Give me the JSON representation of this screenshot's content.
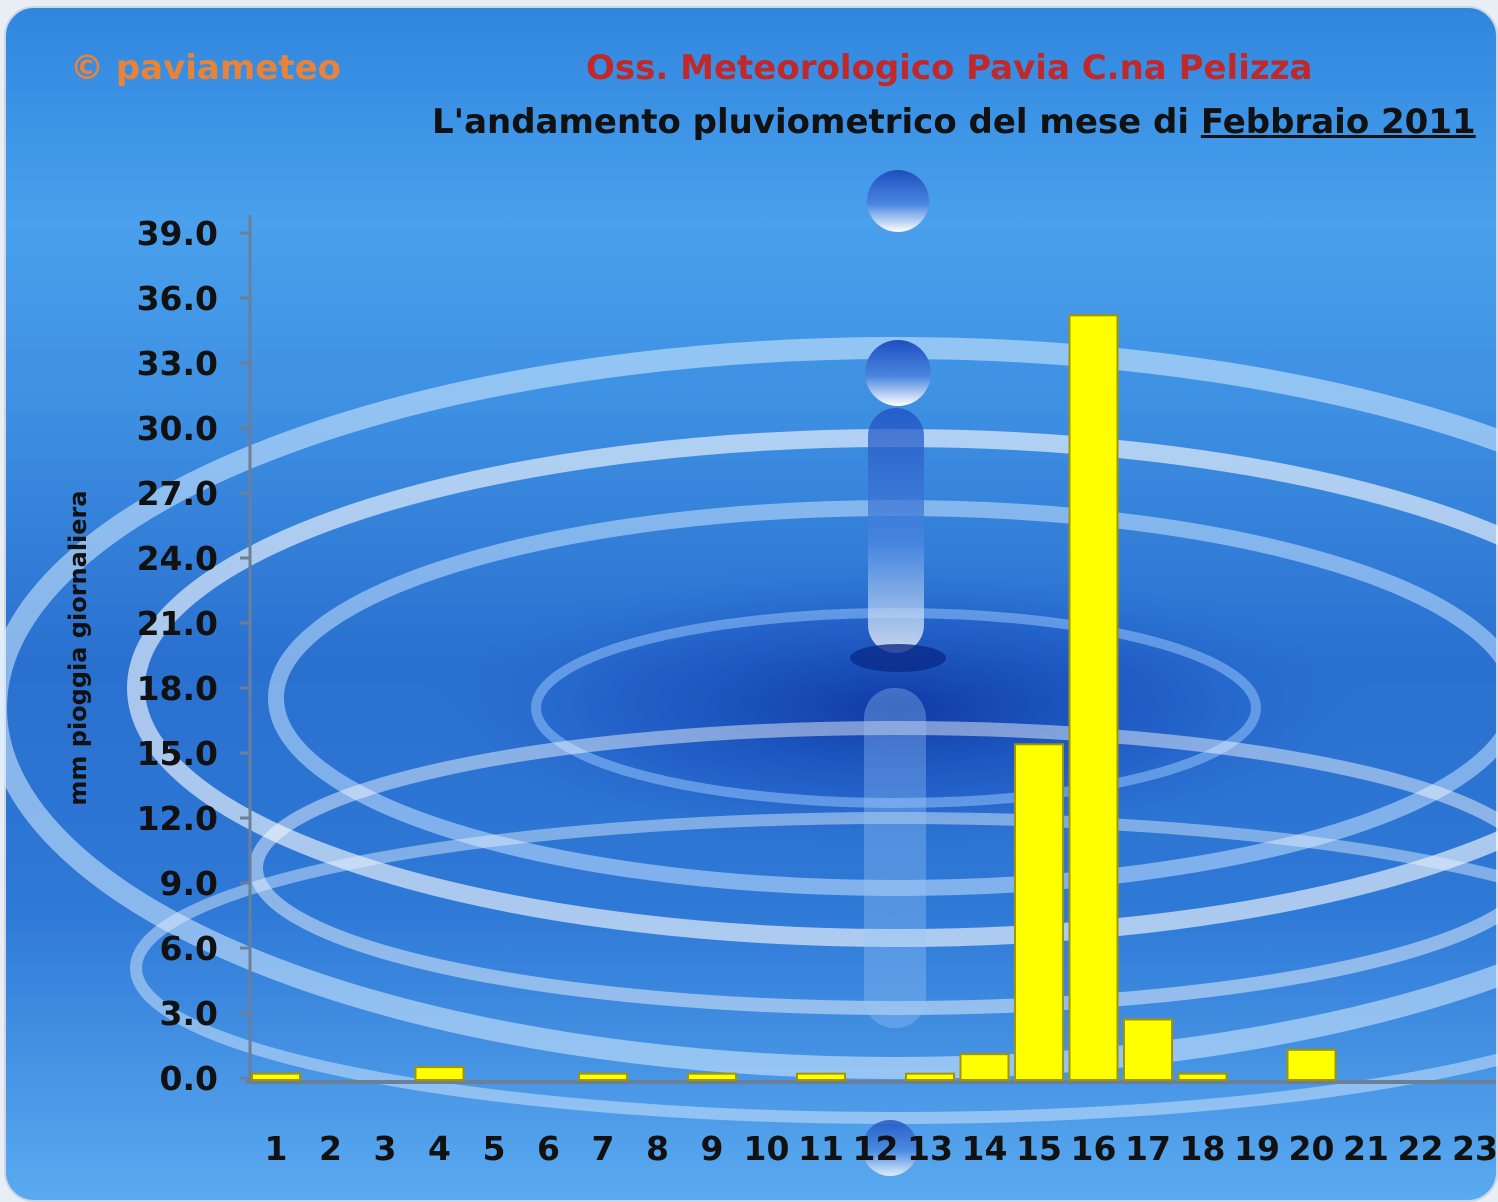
{
  "watermark": "© paviameteo",
  "header": {
    "title": "Oss. Meteorologico Pavia C.na Pelizza",
    "subtitle_prefix": "L'andamento pluviometrico del mese di ",
    "subtitle_month": "Febbraio 2011"
  },
  "colors": {
    "bar_fill": "#ffff00",
    "bar_stroke": "#a09600",
    "axis": "#6b7f99",
    "title": "#c0282a",
    "watermark": "#e8833a"
  },
  "chart_data": {
    "type": "bar",
    "title": "Oss. Meteorologico Pavia C.na Pelizza",
    "subtitle": "L'andamento pluviometrico del mese di Febbraio 2011",
    "xlabel": "",
    "ylabel": "mm pioggia giornaliera",
    "ylim": [
      0,
      39
    ],
    "yticks": [
      "0.0",
      "3.0",
      "6.0",
      "9.0",
      "12.0",
      "15.0",
      "18.0",
      "21.0",
      "24.0",
      "27.0",
      "30.0",
      "33.0",
      "36.0",
      "39.0"
    ],
    "categories": [
      "1",
      "2",
      "3",
      "4",
      "5",
      "6",
      "7",
      "8",
      "9",
      "10",
      "11",
      "12",
      "13",
      "14",
      "15",
      "16",
      "17",
      "18",
      "19",
      "20",
      "21",
      "22",
      "23"
    ],
    "values": [
      0.2,
      0,
      0,
      0.5,
      0,
      0,
      0.2,
      0,
      0.2,
      0,
      0.2,
      0,
      0.2,
      1.1,
      15.4,
      35.2,
      2.7,
      0.2,
      0,
      1.3,
      0,
      0,
      0
    ],
    "grid": false,
    "legend": "none"
  }
}
